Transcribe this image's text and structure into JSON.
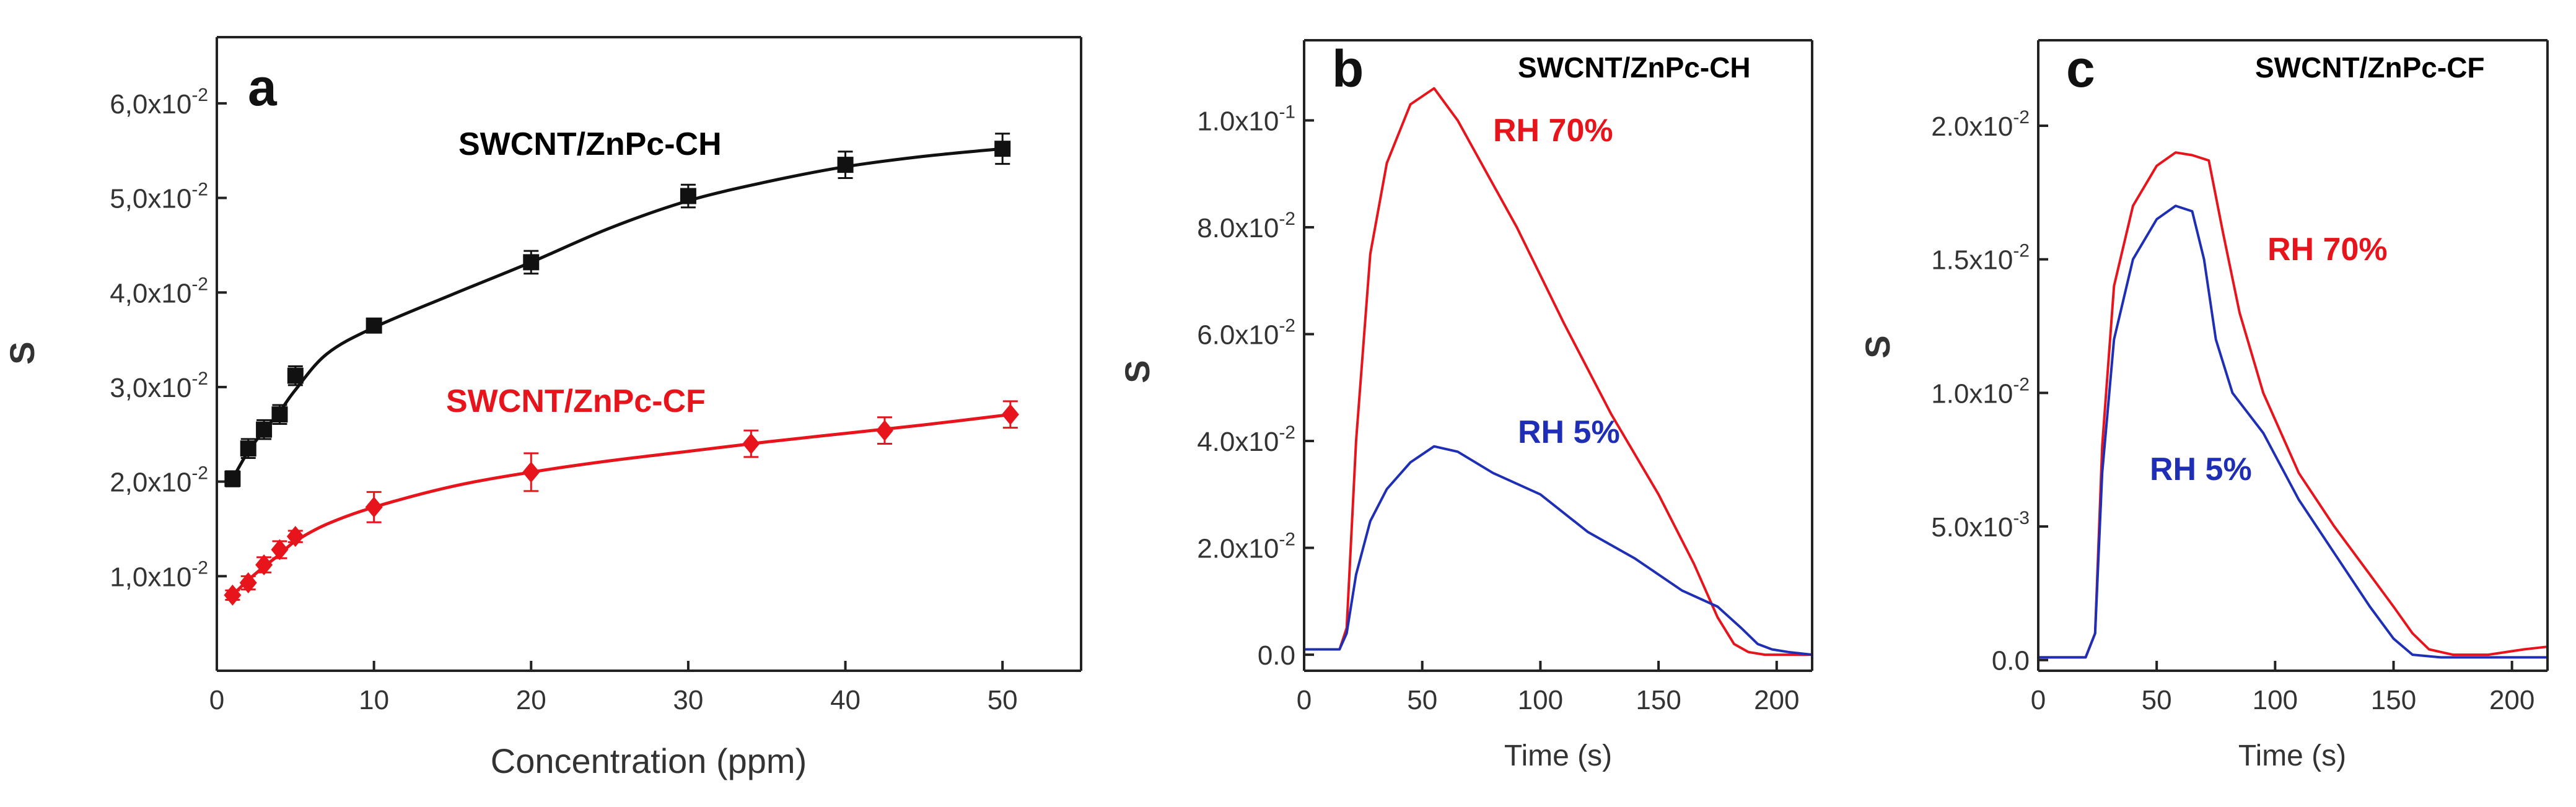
{
  "chart_data": [
    {
      "panel_label": "a",
      "type": "line",
      "xlabel": "Concentration (ppm)",
      "ylabel": "S",
      "xlim": [
        0,
        55
      ],
      "ylim": [
        0,
        0.067
      ],
      "xticks": [
        0,
        10,
        20,
        30,
        40,
        50
      ],
      "xtick_labels": [
        "0",
        "10",
        "20",
        "30",
        "40",
        "50"
      ],
      "yticks": [
        0.01,
        0.02,
        0.03,
        0.04,
        0.05,
        0.06
      ],
      "ytick_labels": [
        {
          "m": "1,0x10",
          "e": "-2"
        },
        {
          "m": "2,0x10",
          "e": "-2"
        },
        {
          "m": "3,0x10",
          "e": "-2"
        },
        {
          "m": "4,0x10",
          "e": "-2"
        },
        {
          "m": "5,0x10",
          "e": "-2"
        },
        {
          "m": "6,0x10",
          "e": "-2"
        }
      ],
      "series": [
        {
          "name": "SWCNT/ZnPc-CH",
          "color": "#111111",
          "marker": "square",
          "x": [
            1,
            2,
            3,
            4,
            5,
            10,
            20,
            30,
            40,
            50
          ],
          "y": [
            0.0203,
            0.0235,
            0.0255,
            0.0271,
            0.0312,
            0.0365,
            0.0432,
            0.0502,
            0.0535,
            0.0552
          ],
          "error": [
            0.0008,
            0.001,
            0.001,
            0.001,
            0.001,
            0.0005,
            0.0012,
            0.0012,
            0.0014,
            0.0016
          ],
          "fit_x": [
            1,
            2,
            3,
            4,
            5,
            7,
            10,
            15,
            20,
            25,
            30,
            35,
            40,
            45,
            50
          ],
          "fit_y": [
            0.0203,
            0.0232,
            0.0254,
            0.0274,
            0.0297,
            0.0335,
            0.0363,
            0.0398,
            0.0432,
            0.0468,
            0.0497,
            0.0517,
            0.0533,
            0.0544,
            0.0552
          ]
        },
        {
          "name": "SWCNT/ZnPc-CF",
          "color": "#e8141c",
          "marker": "diamond",
          "x": [
            1,
            2,
            3,
            4,
            5,
            10,
            20,
            34,
            42.5,
            50.5
          ],
          "y": [
            0.008,
            0.0093,
            0.0112,
            0.0128,
            0.0142,
            0.0173,
            0.021,
            0.024,
            0.0254,
            0.0271
          ],
          "error": [
            0.0005,
            0.0007,
            0.0008,
            0.0009,
            0.0006,
            0.0016,
            0.002,
            0.0014,
            0.0014,
            0.0014
          ],
          "fit_x": [
            1,
            2,
            3,
            4,
            5,
            7,
            10,
            15,
            20,
            25,
            30,
            35,
            40,
            45,
            50.5
          ],
          "fit_y": [
            0.008,
            0.0096,
            0.011,
            0.0123,
            0.0137,
            0.0155,
            0.0173,
            0.0195,
            0.021,
            0.0222,
            0.0232,
            0.0242,
            0.0251,
            0.026,
            0.0271
          ]
        }
      ]
    },
    {
      "panel_label": "b",
      "title": "SWCNT/ZnPc-CH",
      "type": "line",
      "xlabel": "Time (s)",
      "ylabel": "S",
      "xlim": [
        0,
        215
      ],
      "ylim": [
        -0.003,
        0.115
      ],
      "xticks": [
        0,
        50,
        100,
        150,
        200
      ],
      "xtick_labels": [
        "0",
        "50",
        "100",
        "150",
        "200"
      ],
      "yticks": [
        0.0,
        0.02,
        0.04,
        0.06,
        0.08,
        0.1
      ],
      "ytick_labels": [
        {
          "m": "0.0",
          "e": ""
        },
        {
          "m": "2.0x10",
          "e": "-2"
        },
        {
          "m": "4.0x10",
          "e": "-2"
        },
        {
          "m": "6.0x10",
          "e": "-2"
        },
        {
          "m": "8.0x10",
          "e": "-2"
        },
        {
          "m": "1.0x10",
          "e": "-1"
        }
      ],
      "series": [
        {
          "name": "RH 70%",
          "color": "#e8141c",
          "x": [
            0,
            15,
            18,
            22,
            28,
            35,
            45,
            55,
            65,
            75,
            90,
            110,
            130,
            150,
            165,
            175,
            182,
            188,
            195,
            205,
            215
          ],
          "y": [
            0.001,
            0.001,
            0.005,
            0.04,
            0.075,
            0.092,
            0.103,
            0.106,
            0.1,
            0.092,
            0.08,
            0.062,
            0.045,
            0.03,
            0.017,
            0.007,
            0.002,
            0.0005,
            0.0,
            0.0,
            0.0
          ]
        },
        {
          "name": "RH 5%",
          "color": "#1e2fb5",
          "x": [
            0,
            15,
            18,
            22,
            28,
            35,
            45,
            55,
            65,
            80,
            100,
            120,
            140,
            160,
            175,
            185,
            192,
            198,
            205,
            215
          ],
          "y": [
            0.001,
            0.001,
            0.004,
            0.015,
            0.025,
            0.031,
            0.036,
            0.039,
            0.038,
            0.034,
            0.03,
            0.023,
            0.018,
            0.012,
            0.009,
            0.005,
            0.002,
            0.001,
            0.0005,
            0.0
          ]
        }
      ]
    },
    {
      "panel_label": "c",
      "title": "SWCNT/ZnPc-CF",
      "type": "line",
      "xlabel": "Time (s)",
      "ylabel": "S",
      "xlim": [
        0,
        215
      ],
      "ylim": [
        -0.0004,
        0.0232
      ],
      "xticks": [
        0,
        50,
        100,
        150,
        200
      ],
      "xtick_labels": [
        "0",
        "50",
        "100",
        "150",
        "200"
      ],
      "yticks": [
        0.0,
        0.005,
        0.01,
        0.015,
        0.02
      ],
      "ytick_labels": [
        {
          "m": "0.0",
          "e": ""
        },
        {
          "m": "5.0x10",
          "e": "-3"
        },
        {
          "m": "1.0x10",
          "e": "-2"
        },
        {
          "m": "1.5x10",
          "e": "-2"
        },
        {
          "m": "2.0x10",
          "e": "-2"
        }
      ],
      "series": [
        {
          "name": "RH 70%",
          "color": "#e8141c",
          "x": [
            0,
            20,
            24,
            27,
            32,
            40,
            50,
            58,
            65,
            72,
            78,
            85,
            95,
            110,
            125,
            140,
            150,
            158,
            165,
            175,
            190,
            205,
            215
          ],
          "y": [
            0.0001,
            0.0001,
            0.001,
            0.008,
            0.014,
            0.017,
            0.0185,
            0.019,
            0.0189,
            0.0187,
            0.016,
            0.013,
            0.01,
            0.007,
            0.005,
            0.0032,
            0.002,
            0.001,
            0.0004,
            0.0002,
            0.0002,
            0.0004,
            0.0005
          ]
        },
        {
          "name": "RH 5%",
          "color": "#1e2fb5",
          "x": [
            0,
            20,
            24,
            27,
            32,
            40,
            50,
            58,
            65,
            70,
            75,
            82,
            95,
            110,
            125,
            140,
            150,
            158,
            170,
            190,
            215
          ],
          "y": [
            0.0001,
            0.0001,
            0.001,
            0.007,
            0.012,
            0.015,
            0.0165,
            0.017,
            0.0168,
            0.015,
            0.012,
            0.01,
            0.0085,
            0.006,
            0.004,
            0.002,
            0.0008,
            0.0002,
            0.0001,
            0.0001,
            0.0001
          ]
        }
      ]
    }
  ]
}
